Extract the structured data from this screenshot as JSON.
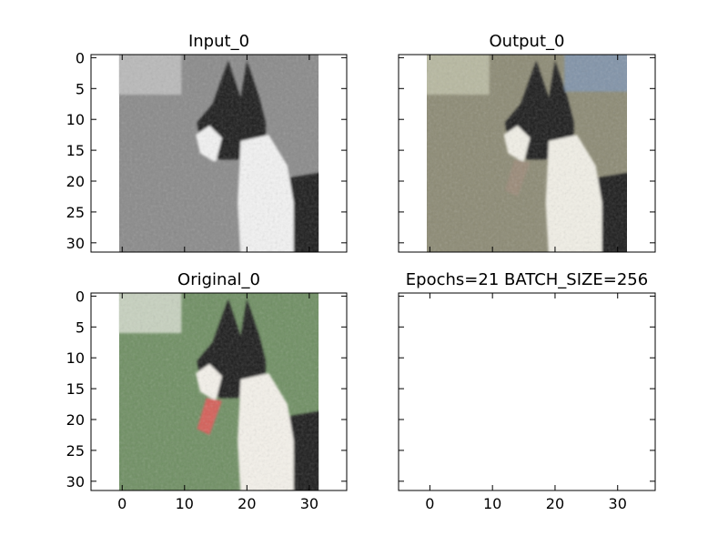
{
  "chart_data": [
    {
      "type": "image",
      "title": "Input_0",
      "xlim": [
        -5,
        36
      ],
      "ylim": [
        31.5,
        -0.5
      ],
      "xticks": [
        0,
        10,
        20,
        30
      ],
      "yticks": [
        0,
        5,
        10,
        15,
        20,
        25,
        30
      ],
      "show_xticklabels": false,
      "show_yticklabels": true,
      "image": {
        "extent": [
          -0.5,
          31.5,
          31.5,
          -0.5
        ],
        "mode": "grayscale",
        "background": "#8a8a8a",
        "sign_color": "#b9b9b9",
        "dog_dark_color": "#1a1a1a",
        "dog_light_color": "#f2f2f2",
        "tongue_color": "#8a8a8a"
      }
    },
    {
      "type": "image",
      "title": "Output_0",
      "xlim": [
        -5,
        36
      ],
      "ylim": [
        31.5,
        -0.5
      ],
      "xticks": [
        0,
        10,
        20,
        30
      ],
      "yticks": [
        0,
        5,
        10,
        15,
        20,
        25,
        30
      ],
      "show_xticklabels": false,
      "show_yticklabels": false,
      "image": {
        "extent": [
          -0.5,
          31.5,
          31.5,
          -0.5
        ],
        "mode": "color",
        "background": "#8c8a74",
        "sky_color": "#7f95b0",
        "sign_color": "#b7b8a0",
        "dog_dark_color": "#1c1c1c",
        "dog_light_color": "#f1efe6",
        "tongue_color": "#9a8a78"
      }
    },
    {
      "type": "image",
      "title": "Original_0",
      "xlim": [
        -5,
        36
      ],
      "ylim": [
        31.5,
        -0.5
      ],
      "xticks": [
        0,
        10,
        20,
        30
      ],
      "yticks": [
        0,
        5,
        10,
        15,
        20,
        25,
        30
      ],
      "show_xticklabels": true,
      "show_yticklabels": true,
      "image": {
        "extent": [
          -0.5,
          31.5,
          31.5,
          -0.5
        ],
        "mode": "color",
        "background": "#6f8f63",
        "sign_color": "#c7d1bf",
        "dog_dark_color": "#1b1b1b",
        "dog_light_color": "#f4f1ea",
        "tongue_color": "#d55e58"
      }
    },
    {
      "type": "empty",
      "title": "Epochs=21 BATCH_SIZE=256",
      "xlim": [
        -5,
        36
      ],
      "ylim": [
        31.5,
        -0.5
      ],
      "xticks": [
        0,
        10,
        20,
        30
      ],
      "yticks": [
        0,
        5,
        10,
        15,
        20,
        25,
        30
      ],
      "show_xticklabels": true,
      "show_yticklabels": false
    }
  ]
}
